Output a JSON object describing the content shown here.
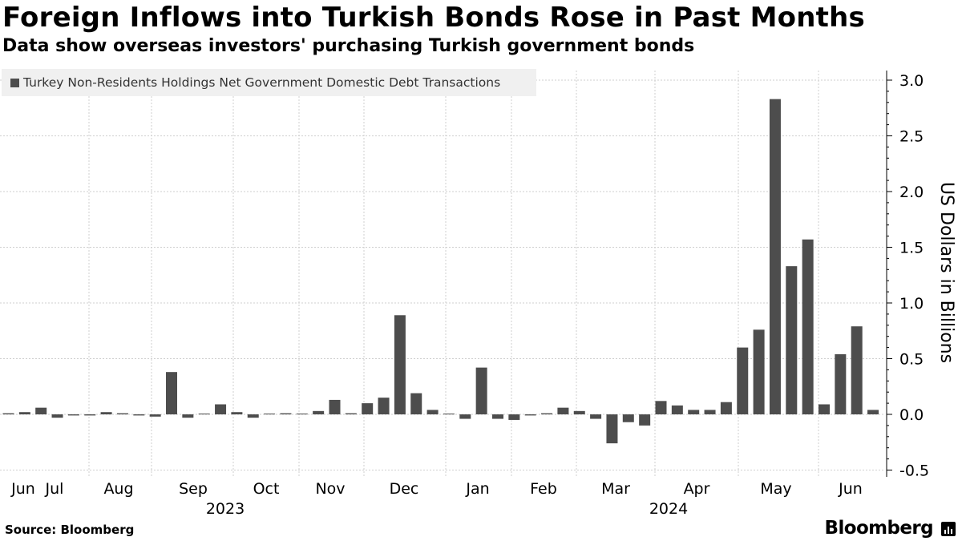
{
  "chart_data": {
    "type": "bar",
    "title": "Foreign Inflows into Turkish Bonds Rose in Past Months",
    "subtitle": "Data show overseas investors' purchasing Turkish government bonds",
    "legend": "Turkey Non-Residents Holdings Net Government Domestic Debt Transactions",
    "ylabel": "US Dollars in Billions",
    "ylim": [
      -0.5,
      3.0
    ],
    "yticks": [
      -0.5,
      0.0,
      0.5,
      1.0,
      1.5,
      2.0,
      2.5,
      3.0
    ],
    "ytick_labels": [
      "-0.5",
      "0.0",
      "0.5",
      "1.0",
      "1.5",
      "2.0",
      "2.5",
      "3.0"
    ],
    "x_month_labels": [
      "Jun",
      "Jul",
      "Aug",
      "Sep",
      "Oct",
      "Nov",
      "Dec",
      "Jan",
      "Feb",
      "Mar",
      "Apr",
      "May",
      "Jun"
    ],
    "x_year_labels": [
      "2023",
      "2024"
    ],
    "series": [
      {
        "name": "Turkey Non-Residents Holdings Net Government Domestic Debt Transactions",
        "color": "#4d4d4d",
        "values": [
          0.01,
          0.02,
          0.06,
          -0.03,
          -0.01,
          -0.01,
          0.02,
          0.01,
          -0.01,
          -0.02,
          0.38,
          -0.03,
          0.0,
          0.09,
          0.02,
          -0.03,
          0.0,
          0.01,
          0.0,
          0.03,
          0.13,
          0.01,
          0.1,
          0.15,
          0.89,
          0.19,
          0.04,
          0.0,
          -0.04,
          0.42,
          -0.04,
          -0.05,
          -0.01,
          0.01,
          0.06,
          0.03,
          -0.04,
          -0.26,
          -0.07,
          -0.1,
          0.12,
          0.08,
          0.04,
          0.04,
          0.11,
          0.6,
          0.76,
          2.83,
          1.33,
          1.57,
          0.09,
          0.54,
          0.79,
          0.04
        ]
      }
    ]
  },
  "footer": {
    "source": "Source: Bloomberg",
    "brand": "Bloomberg"
  }
}
